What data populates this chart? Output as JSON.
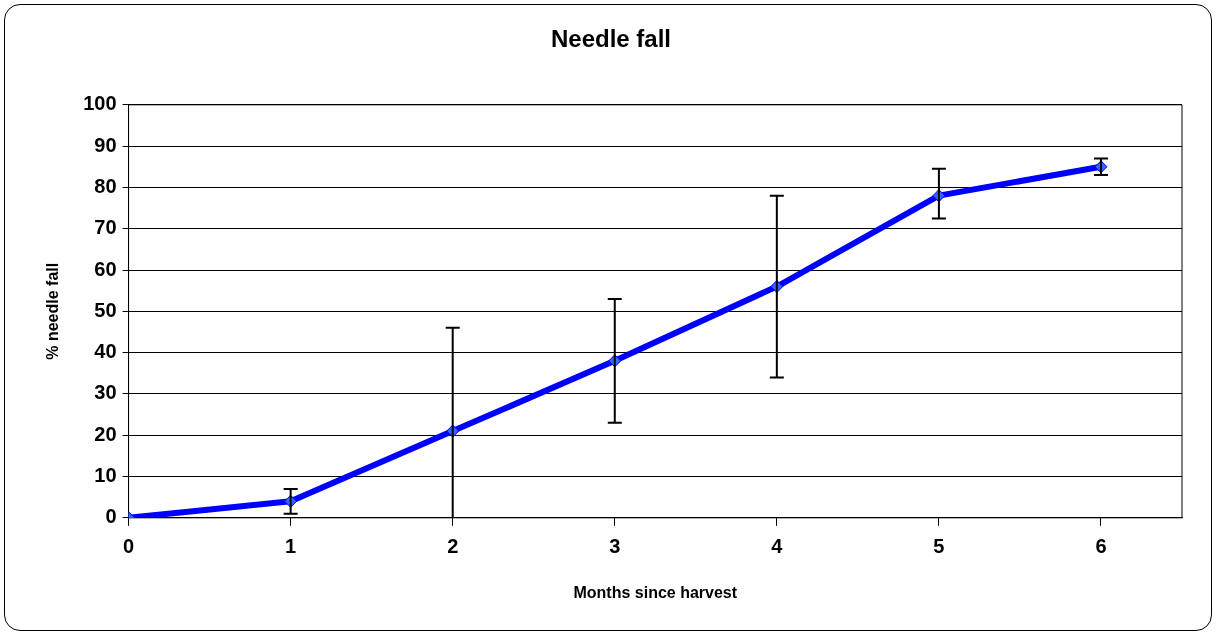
{
  "chart_data": {
    "type": "line",
    "title": "Needle fall",
    "xlabel": "Months since harvest",
    "ylabel": "% needle fall",
    "x": [
      0,
      1,
      2,
      3,
      4,
      5,
      6
    ],
    "series": [
      {
        "color": "#0000ff",
        "values": [
          0,
          4,
          21,
          38,
          56,
          78,
          85
        ],
        "errors": [
          null,
          [
            1,
            7
          ],
          [
            0,
            46
          ],
          [
            23,
            53
          ],
          [
            34,
            78
          ],
          [
            72.5,
            84.5
          ],
          [
            83,
            87
          ]
        ]
      }
    ],
    "xlim": [
      0,
      6.5
    ],
    "xticks": [
      0,
      1,
      2,
      3,
      4,
      5,
      6
    ],
    "ylim": [
      0,
      100
    ],
    "yticks": [
      0,
      10,
      20,
      30,
      40,
      50,
      60,
      70,
      80,
      90,
      100
    ],
    "grid": "y",
    "legend": false,
    "marker": "diamond",
    "line_style": "solid"
  }
}
